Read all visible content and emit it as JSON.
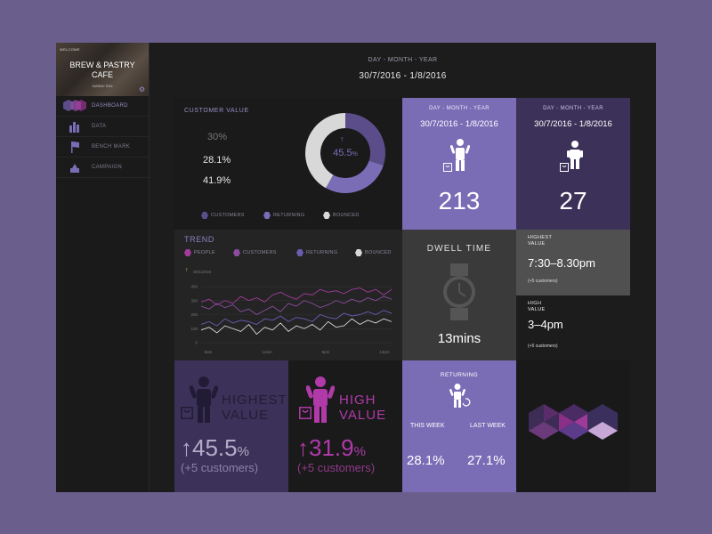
{
  "sidebar": {
    "welcome": "WELCOME",
    "brand_line1": "BREW & PASTRY",
    "brand_line2": "CAFE",
    "brand_sub": "SUNDAY 2016",
    "settings_icon": "gear-icon",
    "items": [
      {
        "label": "DASHBOARD",
        "icon": "dashboard-icon",
        "active": true
      },
      {
        "label": "DATA",
        "icon": "bar-chart-icon",
        "active": false
      },
      {
        "label": "BENCH MARK",
        "icon": "flag-icon",
        "active": false
      },
      {
        "label": "CAMPAIGN",
        "icon": "megaphone-icon",
        "active": false
      }
    ]
  },
  "header": {
    "period_label": "DAY - MONTH - YEAR",
    "date_range": "30/7/2016 - 1/8/2016"
  },
  "customer_value": {
    "title": "CUSTOMER VALUE",
    "values": [
      "30%",
      "28.1%",
      "41.9%"
    ],
    "donut_center": "45.5",
    "donut_unit": "%",
    "donut_slices": [
      {
        "name": "customers",
        "value": 30,
        "color": "#5a4d8a"
      },
      {
        "name": "returning",
        "value": 28.1,
        "color": "#7b6cb6"
      },
      {
        "name": "bounced",
        "value": 41.9,
        "color": "#d8d8d8"
      }
    ],
    "legend": [
      {
        "label": "CUSTOMERS",
        "color": "#5a4d8a"
      },
      {
        "label": "RETURNING",
        "color": "#7b6cb6"
      },
      {
        "label": "BOUNCED",
        "color": "#d8d8d8"
      }
    ]
  },
  "stat_people": {
    "period_label": "DAY - MONTH - YEAR",
    "date_range": "30/7/2016 - 1/8/2016",
    "value": "213"
  },
  "stat_children": {
    "period_label": "DAY - MONTH - YEAR",
    "date_range": "30/7/2016 - 1/8/2016",
    "value": "27"
  },
  "trend": {
    "title": "TREND",
    "legend": [
      {
        "label": "PEOPLE",
        "color": "#a23b9a"
      },
      {
        "label": "CUSTOMERS",
        "color": "#8a4d9c"
      },
      {
        "label": "RETURNING",
        "color": "#6c5cb0"
      },
      {
        "label": "BOUNCED",
        "color": "#d8d8d8"
      }
    ],
    "annotation": "30/1/2016",
    "y_ticks": [
      "400",
      "300",
      "200",
      "100",
      "0"
    ],
    "x_ticks": [
      "8am",
      "12am",
      "6pm",
      "12pm"
    ]
  },
  "chart_data": {
    "type": "line",
    "title": "TREND",
    "x": [
      0,
      1,
      2,
      3,
      4,
      5,
      6,
      7,
      8,
      9,
      10,
      11,
      12,
      13,
      14,
      15,
      16,
      17,
      18,
      19,
      20,
      21,
      22,
      23,
      24
    ],
    "x_tick_labels": [
      "8am",
      "12am",
      "6pm",
      "12pm"
    ],
    "ylim": [
      0,
      400
    ],
    "y_ticks": [
      0,
      100,
      200,
      300,
      400
    ],
    "series": [
      {
        "name": "PEOPLE",
        "color": "#a23b9a",
        "values": [
          290,
          310,
          270,
          300,
          280,
          330,
          300,
          320,
          290,
          340,
          360,
          330,
          310,
          350,
          340,
          380,
          360,
          370,
          350,
          380,
          390,
          360,
          380,
          340,
          380
        ]
      },
      {
        "name": "CUSTOMERS",
        "color": "#8a4d9c",
        "values": [
          260,
          240,
          280,
          250,
          270,
          220,
          240,
          200,
          230,
          260,
          220,
          280,
          260,
          300,
          280,
          250,
          270,
          300,
          280,
          310,
          290,
          320,
          300,
          330,
          310
        ]
      },
      {
        "name": "RETURNING",
        "color": "#6c5cb0",
        "values": [
          130,
          150,
          120,
          170,
          140,
          160,
          150,
          130,
          170,
          160,
          190,
          150,
          180,
          170,
          150,
          200,
          180,
          170,
          210,
          190,
          200,
          220,
          200,
          230,
          210
        ]
      },
      {
        "name": "BOUNCED",
        "color": "#d8d8d8",
        "values": [
          90,
          110,
          70,
          120,
          100,
          80,
          130,
          60,
          110,
          90,
          140,
          80,
          120,
          100,
          130,
          90,
          150,
          110,
          120,
          170,
          130,
          160,
          140,
          170,
          150
        ]
      }
    ]
  },
  "dwell": {
    "title": "DWELL TIME",
    "value": "13mins"
  },
  "highest": {
    "label_line1": "HIGHEST",
    "label_line2": "VALUE",
    "time": "7:30–8.30pm",
    "note": "(+5 customers)"
  },
  "high": {
    "label_line1": "HIGH",
    "label_line2": "VALUE",
    "time": "3–4pm",
    "note": "(+5 customers)"
  },
  "big_highest": {
    "title_line1": "HIGHEST",
    "title_line2": "VALUE",
    "value": "45.5",
    "unit": "%",
    "note": "(+5 customers)"
  },
  "big_high": {
    "title_line1": "HIGH",
    "title_line2": "VALUE",
    "value": "31.9",
    "unit": "%",
    "note": "(+5 customers)"
  },
  "returning": {
    "title": "RETURNING",
    "this_week_label": "THIS WEEK",
    "last_week_label": "LAST WEEK",
    "this_week": "28.1%",
    "last_week": "27.1%"
  },
  "colors": {
    "accent": "#7b6cb6",
    "magenta": "#b03aa8",
    "dark_purple": "#3c3259",
    "panel": "#2b2b2c"
  }
}
